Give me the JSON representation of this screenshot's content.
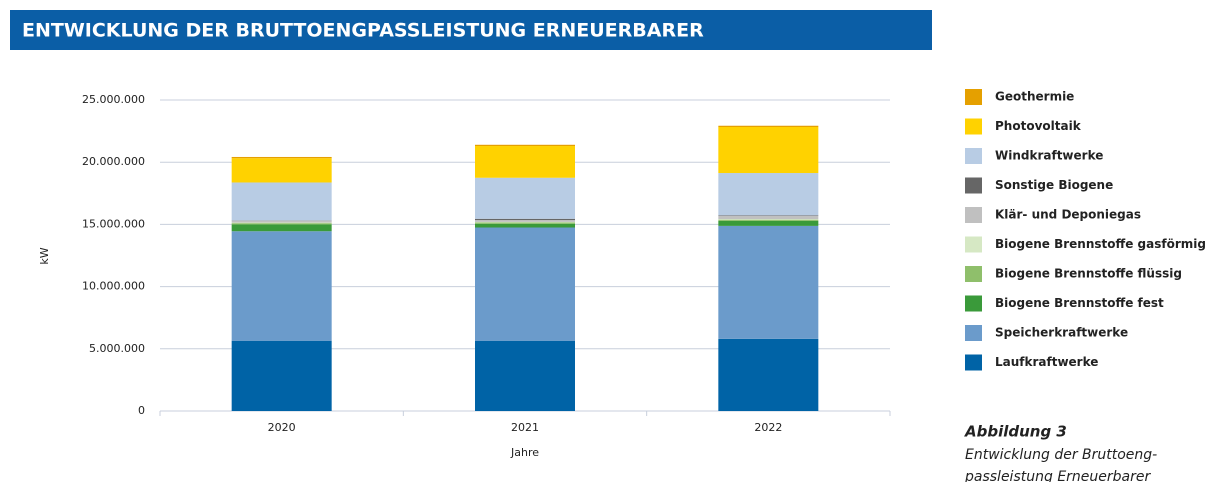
{
  "chart_data": {
    "type": "stacked_bar",
    "title": "ENTWICKLUNG DER BRUTTOENGPASSLEISTUNG ERNEUERBARER",
    "ylabel": "kW",
    "xlabel": "Jahre",
    "categories": [
      "2020",
      "2021",
      "2022"
    ],
    "ylim": [
      0,
      25000000
    ],
    "yticks": [
      {
        "value": 0,
        "label": "0"
      },
      {
        "value": 5000000,
        "label": "5.000.000"
      },
      {
        "value": 10000000,
        "label": "10.000.000"
      },
      {
        "value": 15000000,
        "label": "15.000.000"
      },
      {
        "value": 20000000,
        "label": "20.000.000"
      },
      {
        "value": 25000000,
        "label": "25.000.000"
      }
    ],
    "grid": true,
    "series": [
      {
        "name": "Laufkraftwerke",
        "color": "#0063a6",
        "values": [
          5650000,
          5650000,
          5800000
        ]
      },
      {
        "name": "Speicherkraftwerke",
        "color": "#6b9bcb",
        "values": [
          8800000,
          9100000,
          9080000
        ]
      },
      {
        "name": "Biogene Brennstoffe fest",
        "color": "#3a9a3a",
        "values": [
          550000,
          300000,
          400000
        ]
      },
      {
        "name": "Biogene Brennstoffe flüssig",
        "color": "#8fbf6b",
        "values": [
          100000,
          100000,
          100000
        ]
      },
      {
        "name": "Biogene Brennstoffe gasförmig",
        "color": "#d6e8c4",
        "values": [
          50000,
          50000,
          50000
        ]
      },
      {
        "name": "Klär- und Deponiegas",
        "color": "#c0c0c0",
        "values": [
          150000,
          150000,
          250000
        ]
      },
      {
        "name": "Sonstige Biogene",
        "color": "#666666",
        "values": [
          20000,
          100000,
          50000
        ]
      },
      {
        "name": "Windkraftwerke",
        "color": "#b8cce4",
        "values": [
          3050000,
          3300000,
          3400000
        ]
      },
      {
        "name": "Photovoltaik",
        "color": "#ffd200",
        "values": [
          1950000,
          2550000,
          3700000
        ]
      },
      {
        "name": "Geothermie",
        "color": "#e5a000",
        "values": [
          100000,
          100000,
          100000
        ]
      }
    ],
    "caption": {
      "heading": "Abbildung 3",
      "lines": [
        "Entwicklung der Bruttoeng-",
        "passleistung Erneuerbarer"
      ]
    }
  }
}
